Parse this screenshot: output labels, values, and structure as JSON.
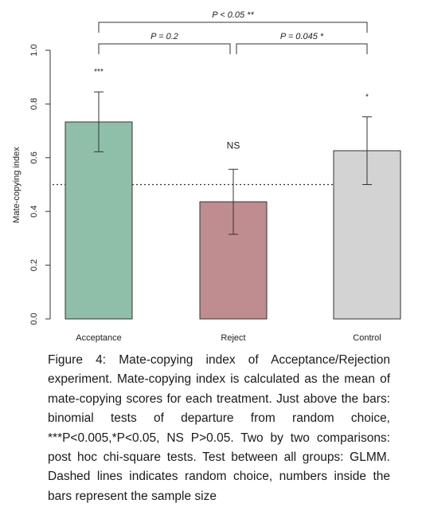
{
  "chart_data": {
    "type": "bar",
    "ylabel": "Mate-copying index",
    "ylim": [
      0,
      1.0
    ],
    "yticks": [
      "0.0",
      "0.2",
      "0.4",
      "0.6",
      "0.8",
      "1.0"
    ],
    "categories": [
      "Acceptance",
      "Reject",
      "Control"
    ],
    "values": [
      0.733,
      0.436,
      0.626
    ],
    "error_low": [
      0.622,
      0.315,
      0.5
    ],
    "error_high": [
      0.845,
      0.557,
      0.752
    ],
    "bar_colors": [
      "#8fbfa9",
      "#bf8c8f",
      "#d3d3d3"
    ],
    "significance": [
      "***",
      "NS",
      "*"
    ],
    "reference_line": 0.5,
    "comparisons": [
      {
        "label": "P < 0.05 **",
        "from": 0,
        "to": 2,
        "level": 2
      },
      {
        "label": "P = 0.2",
        "from": 0,
        "to": 1,
        "level": 1
      },
      {
        "label": "P = 0.045 *",
        "from": 1,
        "to": 2,
        "level": 1
      }
    ]
  },
  "caption": "Figure 4: Mate-copying index of Acceptance/Rejection experiment. Mate-copying index is calculated as the mean of mate-copying scores for each treatment. Just above the bars: binomial tests of departure from random choice, ***P<0.005,*P<0.05, NS P>0.05. Two by two comparisons: post hoc chi-square tests. Test between all groups: GLMM. Dashed lines indicates random choice, numbers inside the bars represent the sample size"
}
